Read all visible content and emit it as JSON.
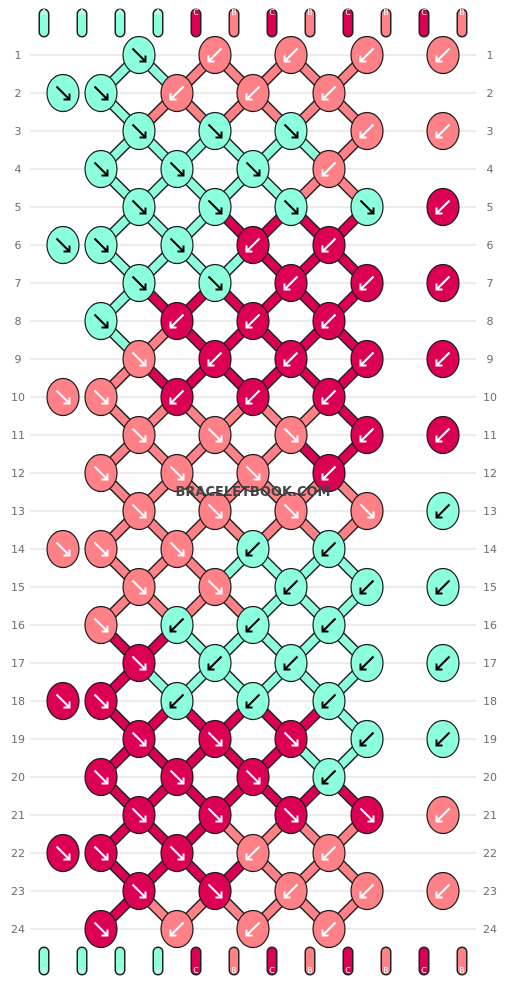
{
  "watermark": "BRACELETBOOK.COM",
  "colors": {
    "A": "#8cffdc",
    "B": "#ff8188",
    "C": "#dc0054"
  },
  "strands": [
    "A",
    "A",
    "A",
    "A",
    "C",
    "B",
    "C",
    "B",
    "C",
    "B",
    "C",
    "B"
  ],
  "row_labels": [
    "1",
    "2",
    "3",
    "4",
    "5",
    "6",
    "7",
    "8",
    "9",
    "10",
    "11",
    "12",
    "13",
    "14",
    "15",
    "16",
    "17",
    "18",
    "19",
    "20",
    "21",
    "22",
    "23",
    "24"
  ],
  "knots": [
    [
      {
        "c": "A",
        "d": "br"
      },
      {
        "c": "B",
        "d": "bl"
      },
      {
        "c": "B",
        "d": "bl"
      },
      {
        "c": "B",
        "d": "bl"
      },
      {
        "c": "B",
        "d": "bl"
      }
    ],
    [
      {
        "c": "A",
        "d": "br"
      },
      {
        "c": "A",
        "d": "br"
      },
      {
        "c": "B",
        "d": "bl"
      },
      {
        "c": "B",
        "d": "bl"
      },
      {
        "c": "B",
        "d": "bl"
      }
    ],
    [
      {
        "c": "A",
        "d": "br"
      },
      {
        "c": "A",
        "d": "br"
      },
      {
        "c": "A",
        "d": "br"
      },
      {
        "c": "B",
        "d": "bl"
      },
      {
        "c": "B",
        "d": "bl"
      }
    ],
    [
      {
        "c": "A",
        "d": "br"
      },
      {
        "c": "A",
        "d": "br"
      },
      {
        "c": "A",
        "d": "br"
      },
      {
        "c": "B",
        "d": "bl"
      }
    ],
    [
      {
        "c": "A",
        "d": "br"
      },
      {
        "c": "A",
        "d": "br"
      },
      {
        "c": "A",
        "d": "br"
      },
      {
        "c": "A",
        "d": "br"
      },
      {
        "c": "C",
        "d": "bl"
      }
    ],
    [
      {
        "c": "A",
        "d": "br"
      },
      {
        "c": "A",
        "d": "br"
      },
      {
        "c": "A",
        "d": "br"
      },
      {
        "c": "C",
        "d": "bl"
      },
      {
        "c": "C",
        "d": "bl"
      }
    ],
    [
      {
        "c": "A",
        "d": "br"
      },
      {
        "c": "A",
        "d": "br"
      },
      {
        "c": "C",
        "d": "bl"
      },
      {
        "c": "C",
        "d": "bl"
      },
      {
        "c": "C",
        "d": "bl"
      }
    ],
    [
      {
        "c": "A",
        "d": "br"
      },
      {
        "c": "C",
        "d": "bl"
      },
      {
        "c": "C",
        "d": "bl"
      },
      {
        "c": "C",
        "d": "bl"
      }
    ],
    [
      {
        "c": "B",
        "d": "br"
      },
      {
        "c": "C",
        "d": "bl"
      },
      {
        "c": "C",
        "d": "bl"
      },
      {
        "c": "C",
        "d": "bl"
      },
      {
        "c": "C",
        "d": "bl"
      }
    ],
    [
      {
        "c": "B",
        "d": "br"
      },
      {
        "c": "B",
        "d": "br"
      },
      {
        "c": "C",
        "d": "bl"
      },
      {
        "c": "C",
        "d": "bl"
      },
      {
        "c": "C",
        "d": "bl"
      }
    ],
    [
      {
        "c": "B",
        "d": "br"
      },
      {
        "c": "B",
        "d": "br"
      },
      {
        "c": "B",
        "d": "br"
      },
      {
        "c": "C",
        "d": "bl"
      },
      {
        "c": "C",
        "d": "bl"
      }
    ],
    [
      {
        "c": "B",
        "d": "br"
      },
      {
        "c": "B",
        "d": "br"
      },
      {
        "c": "B",
        "d": "br"
      },
      {
        "c": "C",
        "d": "bl"
      }
    ],
    [
      {
        "c": "B",
        "d": "br"
      },
      {
        "c": "B",
        "d": "br"
      },
      {
        "c": "B",
        "d": "br"
      },
      {
        "c": "B",
        "d": "br"
      },
      {
        "c": "A",
        "d": "bl"
      }
    ],
    [
      {
        "c": "B",
        "d": "br"
      },
      {
        "c": "B",
        "d": "br"
      },
      {
        "c": "B",
        "d": "br"
      },
      {
        "c": "A",
        "d": "bl"
      },
      {
        "c": "A",
        "d": "bl"
      }
    ],
    [
      {
        "c": "B",
        "d": "br"
      },
      {
        "c": "B",
        "d": "br"
      },
      {
        "c": "A",
        "d": "bl"
      },
      {
        "c": "A",
        "d": "bl"
      },
      {
        "c": "A",
        "d": "bl"
      }
    ],
    [
      {
        "c": "B",
        "d": "br"
      },
      {
        "c": "A",
        "d": "bl"
      },
      {
        "c": "A",
        "d": "bl"
      },
      {
        "c": "A",
        "d": "bl"
      }
    ],
    [
      {
        "c": "C",
        "d": "br"
      },
      {
        "c": "A",
        "d": "bl"
      },
      {
        "c": "A",
        "d": "bl"
      },
      {
        "c": "A",
        "d": "bl"
      },
      {
        "c": "A",
        "d": "bl"
      }
    ],
    [
      {
        "c": "C",
        "d": "br"
      },
      {
        "c": "C",
        "d": "br"
      },
      {
        "c": "A",
        "d": "bl"
      },
      {
        "c": "A",
        "d": "bl"
      },
      {
        "c": "A",
        "d": "bl"
      }
    ],
    [
      {
        "c": "C",
        "d": "br"
      },
      {
        "c": "C",
        "d": "br"
      },
      {
        "c": "C",
        "d": "br"
      },
      {
        "c": "A",
        "d": "bl"
      },
      {
        "c": "A",
        "d": "bl"
      }
    ],
    [
      {
        "c": "C",
        "d": "br"
      },
      {
        "c": "C",
        "d": "br"
      },
      {
        "c": "C",
        "d": "br"
      },
      {
        "c": "A",
        "d": "bl"
      }
    ],
    [
      {
        "c": "C",
        "d": "br"
      },
      {
        "c": "C",
        "d": "br"
      },
      {
        "c": "C",
        "d": "br"
      },
      {
        "c": "C",
        "d": "br"
      },
      {
        "c": "B",
        "d": "bl"
      }
    ],
    [
      {
        "c": "C",
        "d": "br"
      },
      {
        "c": "C",
        "d": "br"
      },
      {
        "c": "C",
        "d": "br"
      },
      {
        "c": "B",
        "d": "bl"
      },
      {
        "c": "B",
        "d": "bl"
      }
    ],
    [
      {
        "c": "C",
        "d": "br"
      },
      {
        "c": "C",
        "d": "br"
      },
      {
        "c": "B",
        "d": "bl"
      },
      {
        "c": "B",
        "d": "bl"
      },
      {
        "c": "B",
        "d": "bl"
      }
    ],
    [
      {
        "c": "C",
        "d": "br"
      },
      {
        "c": "B",
        "d": "bl"
      },
      {
        "c": "B",
        "d": "bl"
      },
      {
        "c": "B",
        "d": "bl"
      }
    ]
  ]
}
